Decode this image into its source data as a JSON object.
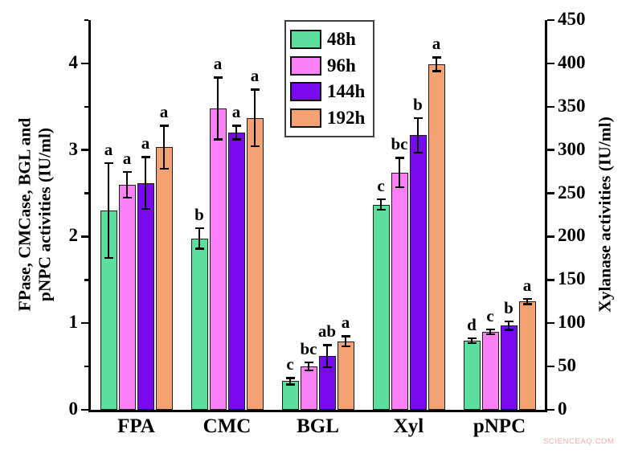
{
  "figure": {
    "watermark": "SCIENCEAQ.COM"
  },
  "chart_data": {
    "type": "bar",
    "title": "",
    "categories": [
      "FPA",
      "CMC",
      "BGL",
      "Xyl",
      "pNPC"
    ],
    "category_axis": [
      "left",
      "left",
      "left",
      "right",
      "left"
    ],
    "series": [
      {
        "name": "48h",
        "color": "#5CDE9C",
        "values": [
          2.3,
          1.98,
          0.33,
          237,
          0.8
        ],
        "errors": [
          0.55,
          0.12,
          0.04,
          6,
          0.03
        ],
        "letters": [
          "a",
          "b",
          "c",
          "c",
          "d"
        ]
      },
      {
        "name": "96h",
        "color": "#FA80F5",
        "values": [
          2.6,
          3.48,
          0.5,
          274,
          0.9
        ],
        "errors": [
          0.15,
          0.36,
          0.05,
          17,
          0.03
        ],
        "letters": [
          "a",
          "a",
          "bc",
          "bc",
          "c"
        ]
      },
      {
        "name": "144h",
        "color": "#7A0AEE",
        "values": [
          2.62,
          3.2,
          0.62,
          317,
          0.97
        ],
        "errors": [
          0.3,
          0.08,
          0.13,
          20,
          0.05
        ],
        "letters": [
          "a",
          "a",
          "ab",
          "b",
          "b"
        ]
      },
      {
        "name": "192h",
        "color": "#F5A273",
        "values": [
          3.03,
          3.37,
          0.79,
          399,
          1.25
        ],
        "errors": [
          0.25,
          0.33,
          0.06,
          8,
          0.03
        ],
        "letters": [
          "a",
          "a",
          "a",
          "a",
          "a"
        ]
      }
    ],
    "axes": {
      "left": {
        "label": "FPase, CMCase, BGL and\npNPC activities (IU/ml)",
        "min": 0,
        "max": 4.5,
        "major_ticks": [
          0,
          1,
          2,
          3,
          4
        ],
        "minor_step": 0.5
      },
      "right": {
        "label": "Xylanase activities (IU/ml)",
        "min": 0,
        "max": 450,
        "major_ticks": [
          0,
          50,
          100,
          150,
          200,
          250,
          300,
          350,
          400,
          450
        ]
      }
    },
    "legend": {
      "position": "top-center",
      "entries": [
        "48h",
        "96h",
        "144h",
        "192h"
      ]
    },
    "grid": false,
    "error_bars": true,
    "significance_letters": true
  }
}
